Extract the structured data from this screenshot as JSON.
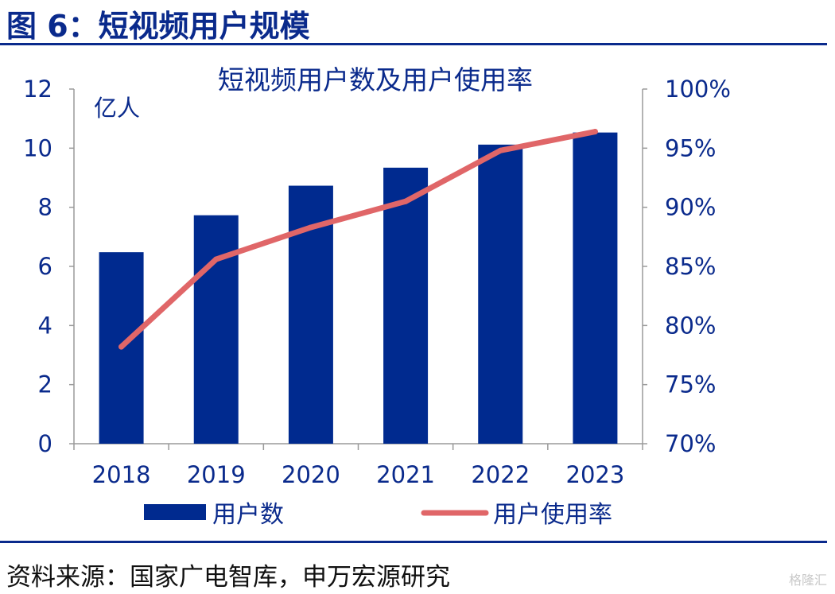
{
  "figure_title": "图 6：短视频用户规模",
  "source": "资料来源：国家广电智库，申万宏源研究",
  "watermark": "格隆汇",
  "colors": {
    "bar": "#002a8f",
    "line": "#e06668",
    "accent": "#0a2a8c"
  },
  "chart_data": {
    "type": "bar",
    "title": "短视频用户数及用户使用率",
    "ylabel": "亿人",
    "categories": [
      "2018",
      "2019",
      "2020",
      "2021",
      "2022",
      "2023"
    ],
    "y_ticks": [
      "0",
      "2",
      "4",
      "6",
      "8",
      "10",
      "12"
    ],
    "y2_ticks": [
      "70%",
      "75%",
      "80%",
      "85%",
      "90%",
      "95%",
      "100%"
    ],
    "ylim": [
      0,
      12
    ],
    "y2lim": [
      70,
      100
    ],
    "legend_position": "bottom",
    "grid": false,
    "series": [
      {
        "name": "用户数",
        "type": "bar",
        "axis": "left",
        "values": [
          6.48,
          7.73,
          8.73,
          9.34,
          10.12,
          10.53
        ]
      },
      {
        "name": "用户使用率",
        "type": "line",
        "axis": "right",
        "values": [
          78.2,
          85.6,
          88.3,
          90.5,
          94.8,
          96.4
        ]
      }
    ]
  }
}
